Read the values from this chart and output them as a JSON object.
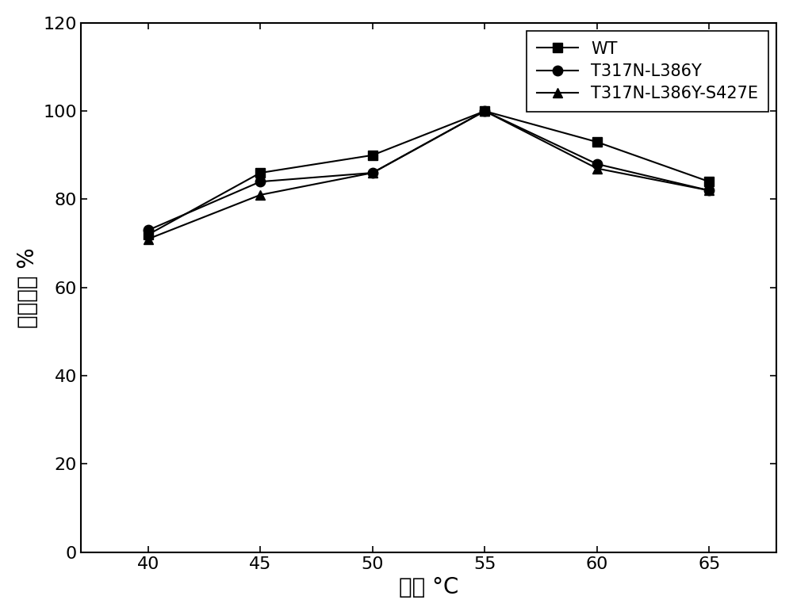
{
  "x": [
    40,
    45,
    50,
    55,
    60,
    65
  ],
  "series": [
    {
      "label": "WT",
      "y": [
        72,
        86,
        90,
        100,
        93,
        84
      ],
      "marker": "s",
      "color": "#000000"
    },
    {
      "label": "T317N-L386Y",
      "y": [
        73,
        84,
        86,
        100,
        88,
        82
      ],
      "marker": "o",
      "color": "#000000"
    },
    {
      "label": "T317N-L386Y-S427E",
      "y": [
        71,
        81,
        86,
        100,
        87,
        82
      ],
      "marker": "^",
      "color": "#000000"
    }
  ],
  "xlabel": "温度 °C",
  "ylabel": "相对酶活 %",
  "xlim": [
    37,
    68
  ],
  "ylim": [
    0,
    120
  ],
  "yticks": [
    0,
    20,
    40,
    60,
    80,
    100,
    120
  ],
  "xticks": [
    40,
    45,
    50,
    55,
    60,
    65
  ],
  "legend_loc": "upper right",
  "linewidth": 1.5,
  "markersize": 9,
  "background_color": "#ffffff",
  "axis_color": "#000000",
  "font_size_ticks": 16,
  "font_size_labels": 20,
  "font_size_legend": 15
}
